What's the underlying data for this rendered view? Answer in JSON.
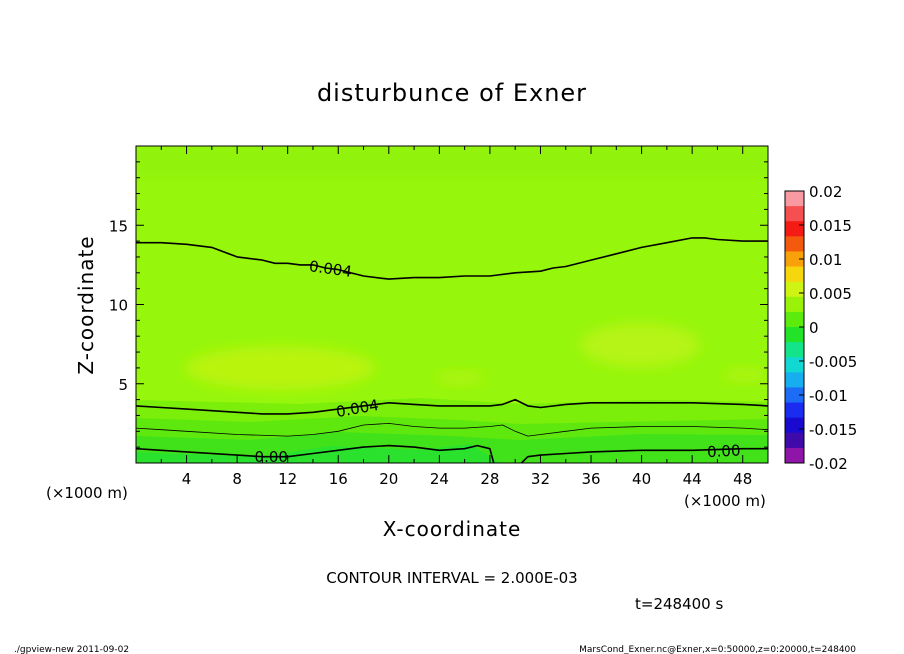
{
  "chart_data": {
    "type": "heatmap",
    "title": "disturbunce of Exner",
    "xlabel": "X-coordinate",
    "ylabel": "Z-coordinate",
    "x_unit": "(×1000 m)",
    "y_unit": "(×1000 m)",
    "xlim": [
      0,
      50
    ],
    "ylim": [
      0,
      20
    ],
    "x_ticks": [
      "4",
      "8",
      "12",
      "16",
      "20",
      "24",
      "28",
      "32",
      "36",
      "40",
      "44",
      "48"
    ],
    "y_ticks": [
      "5",
      "10",
      "15"
    ],
    "contour_interval_text": "CONTOUR INTERVAL = 2.000E-03",
    "time_text": "t=248400 s",
    "colorbar": {
      "ticks": [
        "0.02",
        "0.015",
        "0.01",
        "0.005",
        "0",
        "-0.005",
        "-0.01",
        "-0.015",
        "-0.02"
      ],
      "range": [
        -0.02,
        0.02
      ],
      "colors": [
        "#f99aa3",
        "#f54f52",
        "#f51b15",
        "#f45a0e",
        "#f8a10b",
        "#f6d60c",
        "#cff313",
        "#99f208",
        "#5ceb0c",
        "#22e327",
        "#13e389",
        "#11d8d2",
        "#17aef0",
        "#1d6cf6",
        "#1a2cef",
        "#1a0ad0",
        "#3e0aa9",
        "#8f14a8"
      ]
    },
    "contour_labels": [
      {
        "text": "0.004",
        "x": 15.4,
        "z": 12.3,
        "angle": 8
      },
      {
        "text": "0.004",
        "x": 17.5,
        "z": 3.5,
        "angle": -10
      },
      {
        "text": "0.00",
        "x": 10.7,
        "z": 0.45,
        "angle": 0
      },
      {
        "text": "0.00",
        "x": 46.5,
        "z": 0.8,
        "angle": -3
      }
    ],
    "contours": [
      {
        "level": "0.004",
        "points": [
          [
            0,
            13.9
          ],
          [
            2,
            13.9
          ],
          [
            4,
            13.8
          ],
          [
            6,
            13.6
          ],
          [
            8,
            13.0
          ],
          [
            10,
            12.8
          ],
          [
            11,
            12.6
          ],
          [
            12,
            12.6
          ],
          [
            13,
            12.5
          ],
          [
            14,
            12.5
          ],
          [
            15,
            12.3
          ],
          [
            16,
            12.2
          ],
          [
            18,
            11.8
          ],
          [
            20,
            11.6
          ],
          [
            22,
            11.7
          ],
          [
            24,
            11.7
          ],
          [
            26,
            11.8
          ],
          [
            28,
            11.8
          ],
          [
            30,
            12.0
          ],
          [
            32,
            12.1
          ],
          [
            33,
            12.3
          ],
          [
            34,
            12.4
          ],
          [
            36,
            12.8
          ],
          [
            38,
            13.2
          ],
          [
            40,
            13.6
          ],
          [
            42,
            13.9
          ],
          [
            44,
            14.2
          ],
          [
            45,
            14.2
          ],
          [
            46,
            14.1
          ],
          [
            48,
            14.0
          ],
          [
            50,
            14.0
          ]
        ]
      },
      {
        "level": "0.004",
        "points": [
          [
            0,
            3.6
          ],
          [
            2,
            3.5
          ],
          [
            4,
            3.4
          ],
          [
            8,
            3.2
          ],
          [
            10,
            3.1
          ],
          [
            12,
            3.1
          ],
          [
            14,
            3.2
          ],
          [
            16,
            3.4
          ],
          [
            18,
            3.6
          ],
          [
            20,
            3.8
          ],
          [
            22,
            3.7
          ],
          [
            24,
            3.6
          ],
          [
            26,
            3.6
          ],
          [
            28,
            3.6
          ],
          [
            29,
            3.7
          ],
          [
            30,
            4.0
          ],
          [
            31,
            3.6
          ],
          [
            32,
            3.5
          ],
          [
            34,
            3.7
          ],
          [
            36,
            3.8
          ],
          [
            40,
            3.8
          ],
          [
            44,
            3.8
          ],
          [
            48,
            3.7
          ],
          [
            50,
            3.6
          ]
        ]
      },
      {
        "level": "0.002",
        "points": [
          [
            0,
            2.2
          ],
          [
            2,
            2.1
          ],
          [
            4,
            2.0
          ],
          [
            8,
            1.8
          ],
          [
            12,
            1.7
          ],
          [
            14,
            1.8
          ],
          [
            16,
            2.0
          ],
          [
            18,
            2.4
          ],
          [
            20,
            2.5
          ],
          [
            22,
            2.3
          ],
          [
            24,
            2.2
          ],
          [
            26,
            2.2
          ],
          [
            28,
            2.3
          ],
          [
            29,
            2.4
          ],
          [
            30,
            2.0
          ],
          [
            31,
            1.7
          ],
          [
            32,
            1.8
          ],
          [
            34,
            2.0
          ],
          [
            36,
            2.2
          ],
          [
            40,
            2.3
          ],
          [
            44,
            2.3
          ],
          [
            48,
            2.2
          ],
          [
            50,
            2.1
          ]
        ]
      },
      {
        "level": "0.00",
        "points": [
          [
            0,
            0.9
          ],
          [
            2,
            0.8
          ],
          [
            4,
            0.7
          ],
          [
            8,
            0.5
          ],
          [
            10,
            0.4
          ],
          [
            12,
            0.4
          ],
          [
            14,
            0.6
          ],
          [
            16,
            0.8
          ],
          [
            18,
            1.0
          ],
          [
            20,
            1.1
          ],
          [
            22,
            1.0
          ],
          [
            24,
            0.8
          ],
          [
            26,
            0.9
          ],
          [
            27,
            1.1
          ],
          [
            28,
            0.9
          ],
          [
            28.3,
            0.0
          ]
        ]
      },
      {
        "level": "0.00",
        "points": [
          [
            30.5,
            0.0
          ],
          [
            31,
            0.4
          ],
          [
            32,
            0.5
          ],
          [
            34,
            0.6
          ],
          [
            36,
            0.7
          ],
          [
            40,
            0.8
          ],
          [
            44,
            0.8
          ],
          [
            48,
            0.9
          ],
          [
            50,
            0.9
          ]
        ]
      }
    ]
  },
  "footer": {
    "left": "./gpview-new  2011-09-02",
    "right": "MarsCond_Exner.nc@Exner,x=0:50000,z=0:20000,t=248400"
  }
}
